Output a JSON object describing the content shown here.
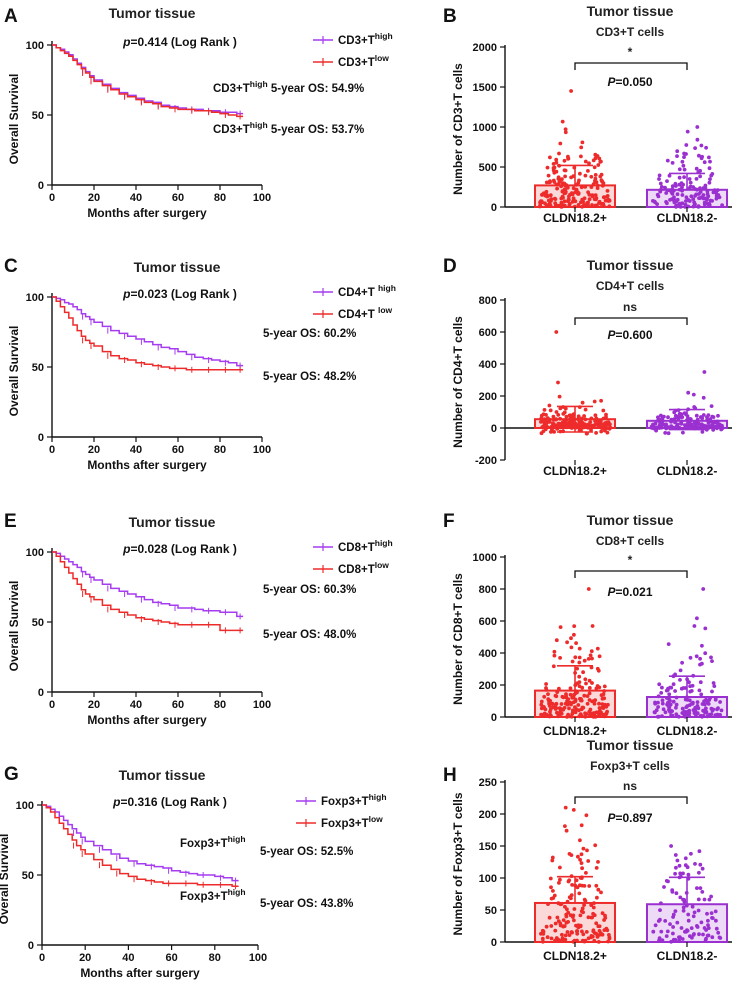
{
  "chart_data": [
    {
      "label": "A",
      "type": "line",
      "subtype": "kaplan-meier",
      "title": "Tumor tissue",
      "xlabel": "Months after surgery",
      "ylabel": "Overall Survival",
      "xlim": [
        0,
        100
      ],
      "ylim": [
        0,
        100
      ],
      "xticks": [
        0,
        20,
        40,
        60,
        80,
        100
      ],
      "yticks": [
        0,
        50,
        100
      ],
      "pvalue": "p=0.414 (Log Rank )",
      "annotations": [
        {
          "text": "CD3+T",
          "sup": "high",
          "after": " 5-year OS: 54.9%"
        },
        {
          "text": "CD3+T",
          "sup": "high",
          "after": " 5-year OS: 53.7%"
        }
      ],
      "series": [
        {
          "name": "CD3+T",
          "sup": "high",
          "color": "#a63cf0",
          "x": [
            0,
            2,
            4,
            6,
            8,
            10,
            12,
            14,
            16,
            18,
            20,
            24,
            28,
            32,
            36,
            40,
            44,
            48,
            52,
            56,
            60,
            64,
            68,
            72,
            76,
            80,
            84,
            88,
            91
          ],
          "y": [
            100,
            98,
            97,
            95,
            93,
            90,
            87,
            84,
            81,
            78,
            75,
            72,
            69,
            66,
            64,
            62,
            60,
            59,
            57,
            56,
            55,
            54,
            54,
            53,
            53,
            52,
            52,
            51,
            51
          ]
        },
        {
          "name": "CD3+T",
          "sup": "low",
          "color": "#ee2b2b",
          "x": [
            0,
            2,
            4,
            6,
            8,
            10,
            12,
            14,
            16,
            18,
            20,
            24,
            28,
            32,
            36,
            40,
            44,
            48,
            52,
            56,
            60,
            64,
            68,
            72,
            76,
            80,
            84,
            88,
            91
          ],
          "y": [
            100,
            98,
            96,
            94,
            92,
            89,
            86,
            83,
            80,
            77,
            74,
            71,
            68,
            65,
            63,
            61,
            59,
            58,
            56,
            55,
            54,
            54,
            53,
            53,
            52,
            51,
            50,
            49,
            49
          ]
        }
      ]
    },
    {
      "label": "B",
      "type": "bar",
      "subtype": "bar-with-points",
      "title": "Tumor tissue",
      "subtitle": "CD3+T cells",
      "ylabel": "Number of CD3+T cells",
      "categories": [
        "CLDN18.2+",
        "CLDN18.2-"
      ],
      "ylim": [
        0,
        2000
      ],
      "yticks": [
        0,
        500,
        1000,
        1500,
        2000
      ],
      "means": [
        270,
        215
      ],
      "sd_upper": [
        520,
        420
      ],
      "colors": [
        "#ee2b2b",
        "#9b30d0"
      ],
      "n_points": [
        200,
        150
      ],
      "point_max": [
        1450,
        1000
      ],
      "significance": "*",
      "pvalue": "P=0.050"
    },
    {
      "label": "C",
      "type": "line",
      "subtype": "kaplan-meier",
      "title": "Tumor tissue",
      "xlabel": "Months after surgery",
      "ylabel": "Overall Survival",
      "xlim": [
        0,
        100
      ],
      "ylim": [
        0,
        100
      ],
      "xticks": [
        0,
        20,
        40,
        60,
        80,
        100
      ],
      "yticks": [
        0,
        50,
        100
      ],
      "pvalue": "p=0.023 (Log Rank )",
      "annotations": [
        {
          "text": "5-year OS: 60.2%",
          "sup": "",
          "after": ""
        },
        {
          "text": "5-year OS: 48.2%",
          "sup": "",
          "after": ""
        }
      ],
      "series": [
        {
          "name": "CD4+T ",
          "sup": "high",
          "color": "#a63cf0",
          "x": [
            0,
            2,
            4,
            6,
            8,
            10,
            12,
            14,
            16,
            18,
            20,
            24,
            28,
            32,
            36,
            40,
            44,
            48,
            52,
            56,
            60,
            64,
            68,
            72,
            76,
            80,
            84,
            88,
            91
          ],
          "y": [
            100,
            99,
            98,
            96,
            95,
            93,
            91,
            88,
            86,
            84,
            82,
            79,
            76,
            74,
            72,
            70,
            68,
            66,
            64,
            63,
            61,
            59,
            57,
            56,
            55,
            54,
            53,
            51,
            51
          ]
        },
        {
          "name": "CD4+T ",
          "sup": "low",
          "color": "#ee2b2b",
          "x": [
            0,
            2,
            4,
            6,
            8,
            10,
            12,
            14,
            16,
            18,
            20,
            24,
            28,
            32,
            36,
            40,
            44,
            48,
            52,
            56,
            60,
            64,
            68,
            72,
            76,
            80,
            84,
            88,
            91
          ],
          "y": [
            100,
            97,
            93,
            89,
            85,
            80,
            76,
            72,
            69,
            67,
            65,
            61,
            58,
            56,
            55,
            53,
            52,
            51,
            50,
            49,
            49,
            48,
            48,
            48,
            48,
            48,
            48,
            48,
            48
          ]
        }
      ]
    },
    {
      "label": "D",
      "type": "bar",
      "subtype": "bar-with-points",
      "title": "Tumor tissue",
      "subtitle": "CD4+T cells",
      "ylabel": "Number of CD4+T cells",
      "categories": [
        "CLDN18.2+",
        "CLDN18.2-"
      ],
      "ylim": [
        -200,
        800
      ],
      "yticks": [
        -200,
        0,
        200,
        400,
        600,
        800
      ],
      "means": [
        55,
        45
      ],
      "sd_upper": [
        135,
        115
      ],
      "sd_lower": [
        -25,
        -10
      ],
      "colors": [
        "#ee2b2b",
        "#9b30d0"
      ],
      "n_points": [
        200,
        150
      ],
      "point_max": [
        600,
        350
      ],
      "significance": "ns",
      "pvalue": "P=0.600"
    },
    {
      "label": "E",
      "type": "line",
      "subtype": "kaplan-meier",
      "title": "Tumor tissue",
      "xlabel": "Months after surgery",
      "ylabel": "Overall Survival",
      "xlim": [
        0,
        100
      ],
      "ylim": [
        0,
        100
      ],
      "xticks": [
        0,
        20,
        40,
        60,
        80,
        100
      ],
      "yticks": [
        0,
        50,
        100
      ],
      "pvalue": "p=0.028 (Log Rank )",
      "annotations": [
        {
          "text": "5-year OS: 60.3%",
          "sup": "",
          "after": ""
        },
        {
          "text": "5-year OS: 48.0%",
          "sup": "",
          "after": ""
        }
      ],
      "series": [
        {
          "name": "CD8+T",
          "sup": "high",
          "color": "#a63cf0",
          "x": [
            0,
            2,
            4,
            6,
            8,
            10,
            12,
            14,
            16,
            18,
            20,
            24,
            28,
            32,
            36,
            40,
            44,
            48,
            52,
            56,
            60,
            64,
            68,
            72,
            76,
            80,
            84,
            88,
            91
          ],
          "y": [
            100,
            99,
            97,
            95,
            93,
            91,
            89,
            86,
            84,
            82,
            80,
            77,
            74,
            72,
            70,
            68,
            66,
            64,
            63,
            62,
            60,
            60,
            59,
            58,
            58,
            57,
            57,
            54,
            54
          ]
        },
        {
          "name": "CD8+T",
          "sup": "low",
          "color": "#ee2b2b",
          "x": [
            0,
            2,
            4,
            6,
            8,
            10,
            12,
            14,
            16,
            18,
            20,
            24,
            28,
            32,
            36,
            40,
            44,
            48,
            52,
            56,
            60,
            64,
            68,
            72,
            76,
            80,
            84,
            88,
            91
          ],
          "y": [
            100,
            97,
            93,
            89,
            85,
            81,
            77,
            73,
            70,
            68,
            66,
            62,
            59,
            57,
            55,
            53,
            52,
            51,
            50,
            49,
            48,
            48,
            48,
            48,
            48,
            44,
            44,
            44,
            44
          ]
        }
      ]
    },
    {
      "label": "F",
      "type": "bar",
      "subtype": "bar-with-points",
      "title": "Tumor tissue",
      "subtitle": "CD8+T cells",
      "ylabel": "Number of CD8+T cells",
      "categories": [
        "CLDN18.2+",
        "CLDN18.2-"
      ],
      "ylim": [
        0,
        1000
      ],
      "yticks": [
        0,
        200,
        400,
        600,
        800,
        1000
      ],
      "means": [
        165,
        125
      ],
      "sd_upper": [
        320,
        255
      ],
      "colors": [
        "#ee2b2b",
        "#9b30d0"
      ],
      "n_points": [
        200,
        150
      ],
      "point_max": [
        800,
        800
      ],
      "significance": "*",
      "pvalue": "P=0.021"
    },
    {
      "label": "G",
      "type": "line",
      "subtype": "kaplan-meier",
      "title": "Tumor tissue",
      "xlabel": "Months after surgery",
      "ylabel": "Overall Survival",
      "xlim": [
        0,
        100
      ],
      "ylim": [
        0,
        100
      ],
      "xticks": [
        0,
        20,
        40,
        60,
        80,
        100
      ],
      "yticks": [
        0,
        50,
        100
      ],
      "pvalue": "p=0.316 (Log Rank )",
      "annotations": [
        {
          "text": "Foxp3+T",
          "sup": "high",
          "after": ""
        },
        {
          "text": "5-year OS: 52.5%",
          "sup": "",
          "after": ""
        },
        {
          "text": "Foxp3+T",
          "sup": "high",
          "after": ""
        },
        {
          "text": "5-year OS: 43.8%",
          "sup": "",
          "after": ""
        }
      ],
      "series": [
        {
          "name": "Foxp3+T",
          "sup": "high",
          "color": "#a63cf0",
          "x": [
            0,
            2,
            4,
            6,
            8,
            10,
            12,
            14,
            16,
            18,
            20,
            24,
            28,
            32,
            36,
            40,
            44,
            48,
            52,
            56,
            60,
            64,
            68,
            72,
            76,
            80,
            84,
            88,
            91
          ],
          "y": [
            100,
            99,
            97,
            95,
            92,
            89,
            86,
            83,
            80,
            77,
            74,
            71,
            68,
            65,
            62,
            60,
            58,
            57,
            56,
            55,
            53,
            52,
            51,
            50,
            50,
            49,
            48,
            46,
            46
          ]
        },
        {
          "name": "Foxp3+T",
          "sup": "low",
          "color": "#ee2b2b",
          "x": [
            0,
            2,
            4,
            6,
            8,
            10,
            12,
            14,
            16,
            18,
            20,
            24,
            28,
            32,
            36,
            40,
            44,
            48,
            52,
            56,
            60,
            64,
            68,
            72,
            76,
            80,
            84,
            88,
            91
          ],
          "y": [
            100,
            98,
            95,
            91,
            87,
            83,
            79,
            75,
            71,
            68,
            65,
            61,
            57,
            54,
            51,
            49,
            47,
            46,
            45,
            44,
            44,
            44,
            44,
            43,
            43,
            43,
            43,
            42,
            42
          ]
        }
      ]
    },
    {
      "label": "H",
      "type": "bar",
      "subtype": "bar-with-points",
      "title": "Tumor tissue",
      "subtitle": "Foxp3+T cells",
      "ylabel": "Number of Foxp3+T cells",
      "categories": [
        "CLDN18.2+",
        "CLDN18.2-"
      ],
      "ylim": [
        0,
        250
      ],
      "yticks": [
        0,
        50,
        100,
        150,
        200,
        250
      ],
      "means": [
        61,
        59
      ],
      "sd_upper": [
        102,
        101
      ],
      "colors": [
        "#ee2b2b",
        "#9b30d0"
      ],
      "n_points": [
        170,
        110
      ],
      "point_max": [
        210,
        150
      ],
      "significance": "ns",
      "pvalue": "P=0.897"
    }
  ]
}
